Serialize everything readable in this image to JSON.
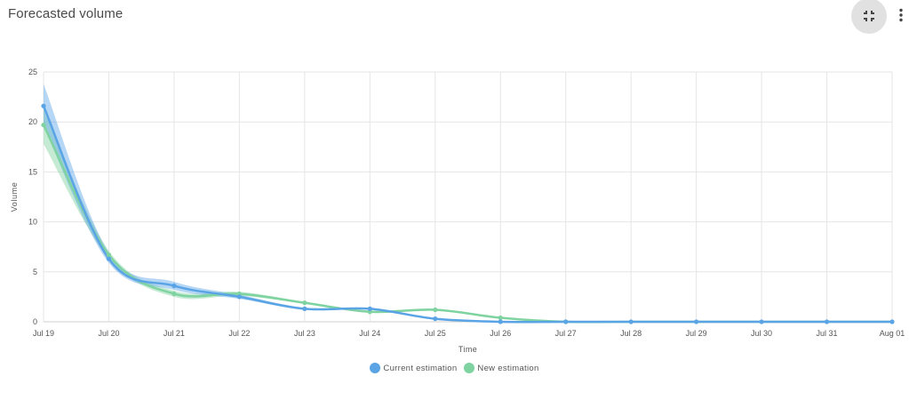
{
  "header": {
    "title": "Forecasted volume",
    "collapse_icon": "collapse-icon",
    "menu_icon": "more-vert-icon"
  },
  "colors": {
    "current": "#5aa4e6",
    "new": "#7fd3a0"
  },
  "chart_data": {
    "type": "line",
    "title": "",
    "xlabel": "Time",
    "ylabel": "Volume",
    "ylim": [
      0,
      25
    ],
    "yticks": [
      0,
      5,
      10,
      15,
      20,
      25
    ],
    "grid": true,
    "legend_position": "bottom-center",
    "categories": [
      "Jul 19",
      "Jul 20",
      "Jul 21",
      "Jul 22",
      "Jul 23",
      "Jul 24",
      "Jul 25",
      "Jul 26",
      "Jul 27",
      "Jul 28",
      "Jul 29",
      "Jul 30",
      "Jul 31",
      "Aug 01"
    ],
    "series": [
      {
        "name": "Current estimation",
        "values": [
          21.6,
          6.3,
          3.6,
          2.5,
          1.3,
          1.3,
          0.3,
          0.0,
          0.0,
          0.0,
          0.0,
          0.0,
          0.0,
          0.0
        ],
        "lower": [
          19.6,
          5.9,
          3.2,
          2.3,
          1.2,
          1.2,
          0.2,
          0.0,
          0.0,
          0.0,
          0.0,
          0.0,
          0.0,
          0.0
        ],
        "upper": [
          23.8,
          6.9,
          4.0,
          2.7,
          1.4,
          1.4,
          0.3,
          0.0,
          0.0,
          0.0,
          0.0,
          0.0,
          0.0,
          0.0
        ]
      },
      {
        "name": "New estimation",
        "values": [
          19.7,
          6.7,
          2.8,
          2.8,
          1.9,
          1.0,
          1.2,
          0.4,
          0.0,
          0.0,
          0.0,
          0.0,
          0.0,
          0.0
        ],
        "lower": [
          17.8,
          6.3,
          2.5,
          2.6,
          1.8,
          0.9,
          1.1,
          0.4,
          0.0,
          0.0,
          0.0,
          0.0,
          0.0,
          0.0
        ],
        "upper": [
          21.2,
          7.1,
          3.1,
          3.0,
          2.0,
          1.1,
          1.3,
          0.4,
          0.0,
          0.0,
          0.0,
          0.0,
          0.0,
          0.0
        ]
      }
    ]
  }
}
